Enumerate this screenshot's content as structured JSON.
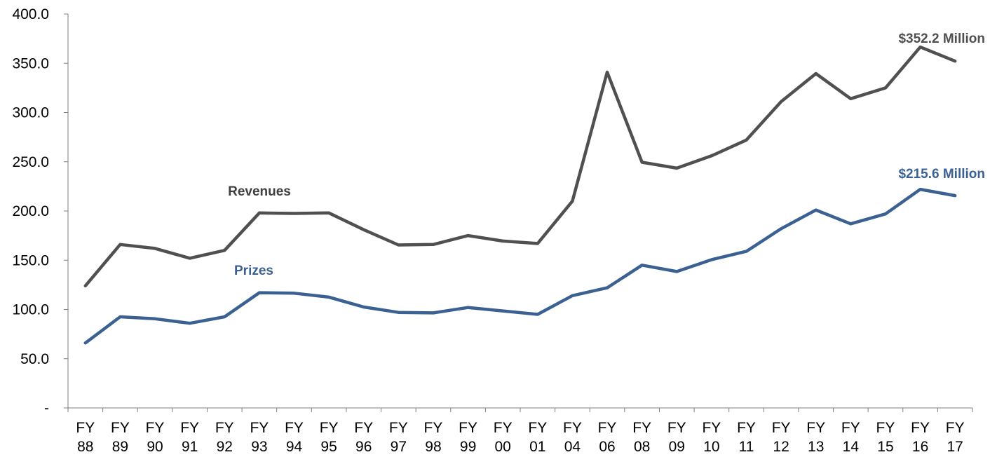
{
  "chart_data": {
    "type": "line",
    "title": "",
    "xlabel": "",
    "ylabel": "",
    "ylim": [
      0,
      400
    ],
    "y_ticks": [
      {
        "value": 0,
        "label": "-"
      },
      {
        "value": 50,
        "label": "50.0"
      },
      {
        "value": 100,
        "label": "100.0"
      },
      {
        "value": 150,
        "label": "150.0"
      },
      {
        "value": 200,
        "label": "200.0"
      },
      {
        "value": 250,
        "label": "250.0"
      },
      {
        "value": 300,
        "label": "300.0"
      },
      {
        "value": 350,
        "label": "350.0"
      },
      {
        "value": 400,
        "label": "400.0"
      }
    ],
    "categories": [
      {
        "line1": "FY",
        "line2": "88"
      },
      {
        "line1": "FY",
        "line2": "89"
      },
      {
        "line1": "FY",
        "line2": "90"
      },
      {
        "line1": "FY",
        "line2": "91"
      },
      {
        "line1": "FY",
        "line2": "92"
      },
      {
        "line1": "FY",
        "line2": "93"
      },
      {
        "line1": "FY",
        "line2": "94"
      },
      {
        "line1": "FY",
        "line2": "95"
      },
      {
        "line1": "FY",
        "line2": "96"
      },
      {
        "line1": "FY",
        "line2": "97"
      },
      {
        "line1": "FY",
        "line2": "98"
      },
      {
        "line1": "FY",
        "line2": "99"
      },
      {
        "line1": "FY",
        "line2": "00"
      },
      {
        "line1": "FY",
        "line2": "01"
      },
      {
        "line1": "FY",
        "line2": "04"
      },
      {
        "line1": "FY",
        "line2": "06"
      },
      {
        "line1": "FY",
        "line2": "08"
      },
      {
        "line1": "FY",
        "line2": "09"
      },
      {
        "line1": "FY",
        "line2": "10"
      },
      {
        "line1": "FY",
        "line2": "11"
      },
      {
        "line1": "FY",
        "line2": "12"
      },
      {
        "line1": "FY",
        "line2": "13"
      },
      {
        "line1": "FY",
        "line2": "14"
      },
      {
        "line1": "FY",
        "line2": "15"
      },
      {
        "line1": "FY",
        "line2": "16"
      },
      {
        "line1": "FY",
        "line2": "17"
      }
    ],
    "series": [
      {
        "name": "Revenues",
        "color": "#505050",
        "values": [
          124,
          166,
          162,
          152,
          160,
          198,
          197.5,
          198,
          181,
          165.5,
          166,
          175,
          169.5,
          167,
          210,
          341,
          249.5,
          243.5,
          256,
          272,
          311,
          339.5,
          314,
          325,
          366.5,
          352.2
        ]
      },
      {
        "name": "Prizes",
        "color": "#3b6192",
        "values": [
          66,
          92.5,
          90.5,
          86,
          92.5,
          117,
          116.5,
          112.5,
          102.5,
          97,
          96.5,
          102,
          98.5,
          95,
          114,
          122,
          145,
          138.5,
          150.5,
          159,
          182,
          201,
          187,
          197,
          222,
          215.6
        ]
      }
    ],
    "annotations": [
      {
        "text": "$352.2 Million",
        "series": "Revenues",
        "color": "#505050"
      },
      {
        "text": "$215.6 Million",
        "series": "Prizes",
        "color": "#3b6192"
      },
      {
        "text": "Revenues",
        "series": "Revenues",
        "color": "#404040"
      },
      {
        "text": "Prizes",
        "series": "Prizes",
        "color": "#3b6192"
      }
    ],
    "grid": false,
    "legend": "none"
  }
}
